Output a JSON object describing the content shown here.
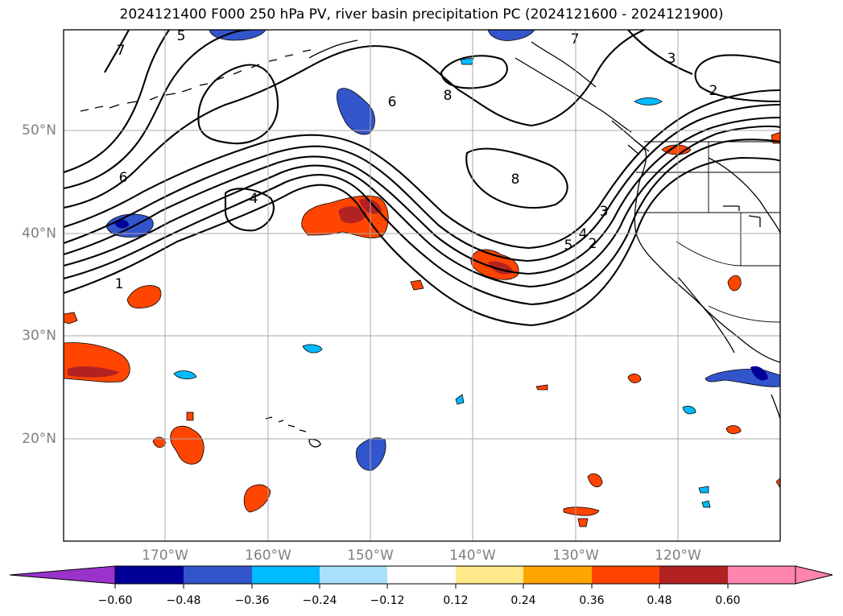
{
  "title": "2024121400 F000 250 hPa PV, river basin precipitation PC (2024121600 - 2024121900)",
  "lat_labels": [
    "50°N",
    "40°N",
    "30°N",
    "20°N"
  ],
  "lon_labels": [
    "170°W",
    "160°W",
    "150°W",
    "140°W",
    "130°W",
    "120°W"
  ],
  "contour_labels": [
    "5",
    "7",
    "6",
    "4",
    "1",
    "6",
    "8",
    "8",
    "7",
    "3",
    "2",
    "5",
    "4",
    "3",
    "2"
  ],
  "colorbar": {
    "ticks": [
      "−0.60",
      "−0.48",
      "−0.36",
      "−0.24",
      "−0.12",
      "0.12",
      "0.24",
      "0.36",
      "0.48",
      "0.60"
    ],
    "colors": [
      "#9933cc",
      "#000099",
      "#3355cc",
      "#00bbff",
      "#aadffb",
      "#ffffff",
      "#ffe98a",
      "#ffa500",
      "#ff4500",
      "#b22222",
      "#ff85b0"
    ]
  }
}
